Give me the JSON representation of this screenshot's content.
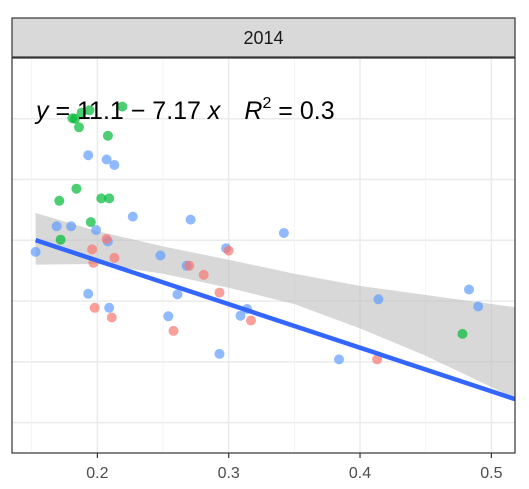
{
  "chart_data": {
    "type": "scatter",
    "facet_label": "2014",
    "xlim": [
      0.135,
      0.518
    ],
    "ylim": [
      6.5,
      13.0
    ],
    "x_ticks": [
      0.2,
      0.3,
      0.4,
      0.5
    ],
    "x_tick_labels": [
      "0.2",
      "0.3",
      "0.4",
      "0.5"
    ],
    "y_gridlines": [
      7,
      8,
      9,
      10,
      11,
      12,
      13
    ],
    "grid": true,
    "legend": "none",
    "colors": {
      "green": "#00BA38",
      "blue": "#619CFF",
      "red": "#F8766D",
      "fit_line": "#3366FF",
      "ribbon": "#BEBEBE",
      "strip_bg": "#D9D9D9"
    },
    "equation": {
      "y_var": "y",
      "rhs_prefix": " = 11.1 − 7.17 ",
      "x_var": "x",
      "r2_label": "R",
      "r2_exp": "2",
      "r2_value": " = 0.3"
    },
    "fit": {
      "intercept": 11.1,
      "slope": -7.17,
      "x_range": [
        0.153,
        0.518
      ]
    },
    "ribbon": {
      "x": [
        0.153,
        0.2,
        0.25,
        0.3,
        0.35,
        0.4,
        0.45,
        0.518
      ],
      "lower": [
        9.6,
        9.61,
        9.45,
        9.22,
        8.95,
        8.55,
        8.1,
        7.4
      ],
      "upper": [
        10.45,
        10.15,
        9.9,
        9.68,
        9.45,
        9.25,
        9.1,
        8.9
      ]
    },
    "series": [
      {
        "color": "green",
        "points": [
          {
            "x": 0.183,
            "y": 12.0
          },
          {
            "x": 0.188,
            "y": 12.1
          },
          {
            "x": 0.194,
            "y": 12.14
          },
          {
            "x": 0.219,
            "y": 12.2
          },
          {
            "x": 0.181,
            "y": 12.01
          },
          {
            "x": 0.186,
            "y": 11.86
          },
          {
            "x": 0.208,
            "y": 11.72
          },
          {
            "x": 0.184,
            "y": 10.85
          },
          {
            "x": 0.203,
            "y": 10.69
          },
          {
            "x": 0.209,
            "y": 10.69
          },
          {
            "x": 0.171,
            "y": 10.65
          },
          {
            "x": 0.195,
            "y": 10.3
          },
          {
            "x": 0.172,
            "y": 10.01
          },
          {
            "x": 0.478,
            "y": 8.46
          }
        ]
      },
      {
        "color": "blue",
        "points": [
          {
            "x": 0.193,
            "y": 11.4
          },
          {
            "x": 0.207,
            "y": 11.33
          },
          {
            "x": 0.213,
            "y": 11.24
          },
          {
            "x": 0.227,
            "y": 10.39
          },
          {
            "x": 0.271,
            "y": 10.34
          },
          {
            "x": 0.169,
            "y": 10.23
          },
          {
            "x": 0.18,
            "y": 10.23
          },
          {
            "x": 0.199,
            "y": 10.17
          },
          {
            "x": 0.208,
            "y": 9.98
          },
          {
            "x": 0.342,
            "y": 10.12
          },
          {
            "x": 0.298,
            "y": 9.87
          },
          {
            "x": 0.153,
            "y": 9.81
          },
          {
            "x": 0.248,
            "y": 9.75
          },
          {
            "x": 0.268,
            "y": 9.58
          },
          {
            "x": 0.193,
            "y": 9.12
          },
          {
            "x": 0.261,
            "y": 9.11
          },
          {
            "x": 0.209,
            "y": 8.89
          },
          {
            "x": 0.254,
            "y": 8.75
          },
          {
            "x": 0.314,
            "y": 8.87
          },
          {
            "x": 0.309,
            "y": 8.76
          },
          {
            "x": 0.414,
            "y": 9.03
          },
          {
            "x": 0.483,
            "y": 9.19
          },
          {
            "x": 0.49,
            "y": 8.91
          },
          {
            "x": 0.293,
            "y": 8.13
          },
          {
            "x": 0.384,
            "y": 8.04
          }
        ]
      },
      {
        "color": "red",
        "points": [
          {
            "x": 0.196,
            "y": 9.85
          },
          {
            "x": 0.197,
            "y": 9.63
          },
          {
            "x": 0.213,
            "y": 9.71
          },
          {
            "x": 0.207,
            "y": 10.02
          },
          {
            "x": 0.3,
            "y": 9.83
          },
          {
            "x": 0.27,
            "y": 9.58
          },
          {
            "x": 0.281,
            "y": 9.43
          },
          {
            "x": 0.293,
            "y": 9.14
          },
          {
            "x": 0.198,
            "y": 8.89
          },
          {
            "x": 0.211,
            "y": 8.73
          },
          {
            "x": 0.317,
            "y": 8.68
          },
          {
            "x": 0.258,
            "y": 8.51
          },
          {
            "x": 0.413,
            "y": 8.04
          }
        ]
      }
    ]
  }
}
